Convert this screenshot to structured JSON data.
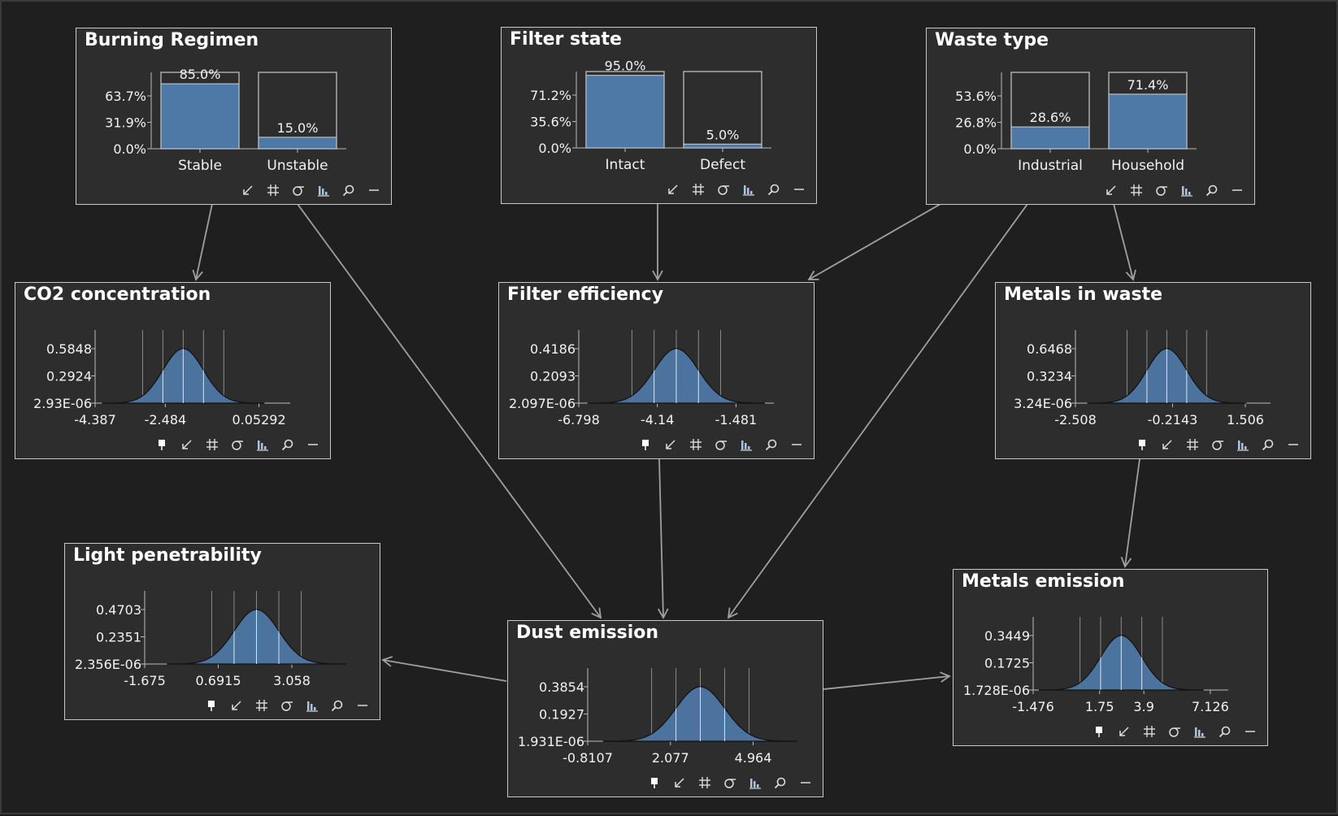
{
  "colors": {
    "background": "#1f1f1f",
    "node_fill": "#2d2d2d",
    "node_border": "#c8c8c8",
    "bar_fill": "#4e79a7",
    "edge": "#a0a0a0"
  },
  "nodes": [
    {
      "id": "burning",
      "title": "Burning Regimen",
      "kind": "discrete",
      "toolbar": [
        "fit-icon",
        "grid-icon",
        "sigma-icon",
        "histogram-icon",
        "search-icon",
        "minimize-icon"
      ]
    },
    {
      "id": "filter_state",
      "title": "Filter state",
      "kind": "discrete",
      "toolbar": [
        "fit-icon",
        "grid-icon",
        "sigma-icon",
        "histogram-icon",
        "search-icon",
        "minimize-icon"
      ]
    },
    {
      "id": "waste_type",
      "title": "Waste type",
      "kind": "discrete",
      "toolbar": [
        "fit-icon",
        "grid-icon",
        "sigma-icon",
        "histogram-icon",
        "search-icon",
        "minimize-icon"
      ]
    },
    {
      "id": "co2",
      "title": "CO2 concentration",
      "kind": "continuous",
      "toolbar": [
        "pin-icon",
        "fit-icon",
        "grid-icon",
        "sigma-icon",
        "histogram-icon",
        "search-icon",
        "minimize-icon"
      ]
    },
    {
      "id": "filter_eff",
      "title": "Filter efficiency",
      "kind": "continuous",
      "toolbar": [
        "pin-icon",
        "fit-icon",
        "grid-icon",
        "sigma-icon",
        "histogram-icon",
        "search-icon",
        "minimize-icon"
      ]
    },
    {
      "id": "metals_waste",
      "title": "Metals in waste",
      "kind": "continuous",
      "toolbar": [
        "pin-icon",
        "fit-icon",
        "grid-icon",
        "sigma-icon",
        "histogram-icon",
        "search-icon",
        "minimize-icon"
      ]
    },
    {
      "id": "light",
      "title": "Light penetrability",
      "kind": "continuous",
      "toolbar": [
        "pin-icon",
        "fit-icon",
        "grid-icon",
        "sigma-icon",
        "histogram-icon",
        "search-icon",
        "minimize-icon"
      ]
    },
    {
      "id": "dust",
      "title": "Dust emission",
      "kind": "continuous",
      "toolbar": [
        "pin-icon",
        "fit-icon",
        "grid-icon",
        "sigma-icon",
        "histogram-icon",
        "search-icon",
        "minimize-icon"
      ]
    },
    {
      "id": "metals_emission",
      "title": "Metals emission",
      "kind": "continuous",
      "toolbar": [
        "pin-icon",
        "fit-icon",
        "grid-icon",
        "sigma-icon",
        "histogram-icon",
        "search-icon",
        "minimize-icon"
      ]
    }
  ],
  "edges": [
    {
      "from": "burning",
      "to": "co2"
    },
    {
      "from": "burning",
      "to": "dust"
    },
    {
      "from": "filter_state",
      "to": "filter_eff"
    },
    {
      "from": "waste_type",
      "to": "filter_eff"
    },
    {
      "from": "waste_type",
      "to": "dust"
    },
    {
      "from": "waste_type",
      "to": "metals_waste"
    },
    {
      "from": "filter_eff",
      "to": "dust"
    },
    {
      "from": "metals_waste",
      "to": "metals_emission"
    },
    {
      "from": "dust",
      "to": "light"
    },
    {
      "from": "dust",
      "to": "metals_emission"
    }
  ],
  "chart_data": [
    {
      "node": "burning",
      "type": "bar",
      "categories": [
        "Stable",
        "Unstable"
      ],
      "values": [
        85.0,
        15.0
      ],
      "value_labels": [
        "85.0%",
        "15.0%"
      ],
      "yticks": [
        "0.0%",
        "31.9%",
        "63.7%"
      ],
      "ytick_values": [
        0,
        31.9,
        63.7
      ]
    },
    {
      "node": "filter_state",
      "type": "bar",
      "categories": [
        "Intact",
        "Defect"
      ],
      "values": [
        95.0,
        5.0
      ],
      "value_labels": [
        "95.0%",
        "5.0%"
      ],
      "yticks": [
        "0.0%",
        "35.6%",
        "71.2%"
      ],
      "ytick_values": [
        0,
        35.6,
        71.2
      ]
    },
    {
      "node": "waste_type",
      "type": "bar",
      "categories": [
        "Industrial",
        "Household"
      ],
      "values": [
        28.6,
        71.4
      ],
      "value_labels": [
        "28.6%",
        "71.4%"
      ],
      "yticks": [
        "0.0%",
        "26.8%",
        "53.6%"
      ],
      "ytick_values": [
        0,
        26.8,
        53.6
      ]
    },
    {
      "node": "co2",
      "type": "area",
      "yticks": [
        "2.93E-06",
        "0.2924",
        "0.5848"
      ],
      "xticks": [
        "-4.387",
        "-2.484",
        "0.05292"
      ],
      "xtick_values": [
        -4.387,
        -2.484,
        0.05292
      ],
      "xlim": [
        -4.387,
        0.9
      ],
      "mean": -2.0,
      "sd": 0.55,
      "peak": 0.5848
    },
    {
      "node": "filter_eff",
      "type": "area",
      "yticks": [
        "2.097E-06",
        "0.2093",
        "0.4186"
      ],
      "xticks": [
        "-6.798",
        "-4.14",
        "-1.481"
      ],
      "xtick_values": [
        -6.798,
        -4.14,
        -1.481
      ],
      "xlim": [
        -6.798,
        -0.2
      ],
      "mean": -3.5,
      "sd": 0.75,
      "peak": 0.4186
    },
    {
      "node": "metals_waste",
      "type": "area",
      "yticks": [
        "3.24E-06",
        "0.3234",
        "0.6468"
      ],
      "xticks": [
        "-2.508",
        "-0.2143",
        "1.506"
      ],
      "xtick_values": [
        -2.508,
        -0.2143,
        1.506
      ],
      "xlim": [
        -2.508,
        2.1
      ],
      "mean": -0.35,
      "sd": 0.47,
      "peak": 0.6468
    },
    {
      "node": "light",
      "type": "area",
      "yticks": [
        "2.356E-06",
        "0.2351",
        "0.4703"
      ],
      "xticks": [
        "-1.675",
        "0.6915",
        "3.058"
      ],
      "xtick_values": [
        -1.675,
        0.6915,
        3.058
      ],
      "xlim": [
        -1.675,
        4.6
      ],
      "mean": 1.92,
      "sd": 0.72,
      "peak": 0.4703
    },
    {
      "node": "dust",
      "type": "area",
      "yticks": [
        "1.931E-06",
        "0.1927",
        "0.3854"
      ],
      "xticks": [
        "-0.8107",
        "2.077",
        "4.964"
      ],
      "xtick_values": [
        -0.8107,
        2.077,
        4.964
      ],
      "xlim": [
        -0.8107,
        6.0
      ],
      "mean": 3.12,
      "sd": 0.85,
      "peak": 0.3854
    },
    {
      "node": "metals_emission",
      "type": "area",
      "yticks": [
        "1.728E-06",
        "0.1725",
        "0.3449"
      ],
      "xticks": [
        "-1.476",
        "1.75",
        "3.9",
        "7.126"
      ],
      "xtick_values": [
        -1.476,
        1.75,
        3.9,
        7.126
      ],
      "xlim": [
        -1.476,
        8.0
      ],
      "mean": 2.8,
      "sd": 1.0,
      "peak": 0.3449
    }
  ]
}
